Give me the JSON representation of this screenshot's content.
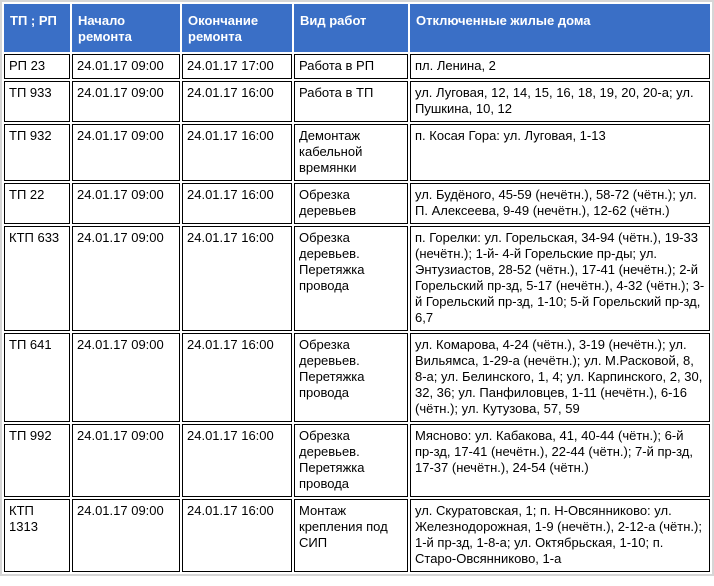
{
  "colors": {
    "header_bg": "#3A6FC6",
    "header_text": "#FFFFFF",
    "cell_border": "#000000",
    "outer_border": "#D6D6D6",
    "cell_bg": "#FFFFFF",
    "cell_text": "#000000"
  },
  "table": {
    "headers": [
      "ТП ; РП",
      "Начало ремонта",
      "Окончание ремонта",
      "Вид работ",
      "Отключенные жилые дома"
    ],
    "rows": [
      {
        "substation": "РП 23",
        "repair_start": "24.01.17 09:00",
        "repair_end": "24.01.17 17:00",
        "work_type": "Работа в РП",
        "houses": "пл. Ленина, 2"
      },
      {
        "substation": "ТП 933",
        "repair_start": "24.01.17 09:00",
        "repair_end": "24.01.17 16:00",
        "work_type": "Работа в ТП",
        "houses": "ул. Луговая, 12, 14, 15, 16, 18, 19, 20, 20-а; ул. Пушкина, 10, 12"
      },
      {
        "substation": "ТП 932",
        "repair_start": "24.01.17 09:00",
        "repair_end": "24.01.17 16:00",
        "work_type": "Демонтаж кабельной времянки",
        "houses": "п. Косая Гора: ул. Луговая, 1-13"
      },
      {
        "substation": "ТП 22",
        "repair_start": "24.01.17 09:00",
        "repair_end": "24.01.17 16:00",
        "work_type": "Обрезка деревьев",
        "houses": "ул. Будёного, 45-59 (нечётн.), 58-72 (чётн.); ул. П. Алексеева, 9-49 (нечётн.), 12-62 (чётн.)"
      },
      {
        "substation": "КТП 633",
        "repair_start": "24.01.17 09:00",
        "repair_end": "24.01.17 16:00",
        "work_type": "Обрезка деревьев. Перетяжка провода",
        "houses": "п. Горелки: ул. Горельская, 34-94 (чётн.), 19-33 (нечётн.); 1-й- 4-й Горельские пр-ды; ул. Энтузиастов, 28-52 (чётн.), 17-41 (нечётн.); 2-й Горельский пр-зд, 5-17 (нечётн.), 4-32 (чётн.); 3-й Горельский пр-зд, 1-10; 5-й Горельский пр-зд, 6,7"
      },
      {
        "substation": "ТП 641",
        "repair_start": "24.01.17 09:00",
        "repair_end": "24.01.17 16:00",
        "work_type": "Обрезка деревьев. Перетяжка провода",
        "houses": "ул. Комарова, 4-24 (чётн.), 3-19 (нечётн.); ул. Вильямса, 1-29-а (нечётн.); ул. М.Расковой, 8, 8-а; ул. Белинского, 1, 4; ул. Карпинского, 2, 30, 32, 36; ул. Панфиловцев, 1-11 (нечётн.), 6-16 (чётн.); ул. Кутузова, 57, 59"
      },
      {
        "substation": "ТП 992",
        "repair_start": "24.01.17 09:00",
        "repair_end": "24.01.17 16:00",
        "work_type": "Обрезка деревьев. Перетяжка провода",
        "houses": "Мясново: ул. Кабакова, 41, 40-44 (чётн.); 6-й пр-зд, 17-41 (нечётн.), 22-44 (чётн.); 7-й пр-зд, 17-37 (нечётн.), 24-54 (чётн.)"
      },
      {
        "substation": "КТП 1313",
        "repair_start": "24.01.17 09:00",
        "repair_end": "24.01.17 16:00",
        "work_type": "Монтаж крепления под СИП",
        "houses": "ул. Скуратовская, 1; п. Н-Овсянниково: ул. Железнодорожная, 1-9 (нечётн.), 2-12-а (чётн.); 1-й пр-зд, 1-8-а; ул. Октябрьская, 1-10; п. Старо-Овсянниково, 1-а"
      }
    ]
  }
}
